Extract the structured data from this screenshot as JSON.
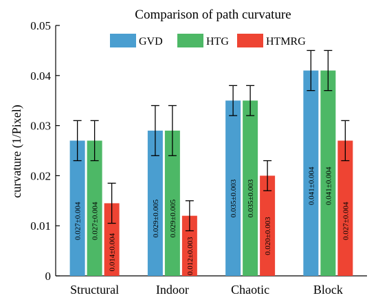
{
  "chart_data": {
    "type": "bar",
    "title": "Comparison of path curvature",
    "xlabel": "",
    "ylabel": "curvature (1/Pixel)",
    "ylim": [
      0,
      0.05
    ],
    "yticks": [
      "0",
      "0.01",
      "0.02",
      "0.03",
      "0.04",
      "0.05"
    ],
    "legend_position": "top",
    "categories": [
      "Structural",
      "Indoor",
      "Chaotic",
      "Block"
    ],
    "series": [
      {
        "name": "GVD",
        "color": "#4a9ed0",
        "values": [
          0.027,
          0.029,
          0.035,
          0.041
        ],
        "errors": [
          0.004,
          0.005,
          0.003,
          0.004
        ],
        "labels": [
          "0.027±0.004",
          "0.029±0.005",
          "0.035±0.003",
          "0.041±0.004"
        ]
      },
      {
        "name": "HTG",
        "color": "#4db866",
        "values": [
          0.027,
          0.029,
          0.035,
          0.041
        ],
        "errors": [
          0.004,
          0.005,
          0.003,
          0.004
        ],
        "labels": [
          "0.027±0.004",
          "0.029±0.005",
          "0.035±0.003",
          "0.041±0.004"
        ]
      },
      {
        "name": "HTMRG",
        "color": "#ee4433",
        "values": [
          0.0145,
          0.012,
          0.02,
          0.027
        ],
        "errors": [
          0.004,
          0.003,
          0.003,
          0.004
        ],
        "labels": [
          "0.014±0.004",
          "0.012±0.003",
          "0.020±0.003",
          "0.027±0.004"
        ]
      }
    ]
  }
}
